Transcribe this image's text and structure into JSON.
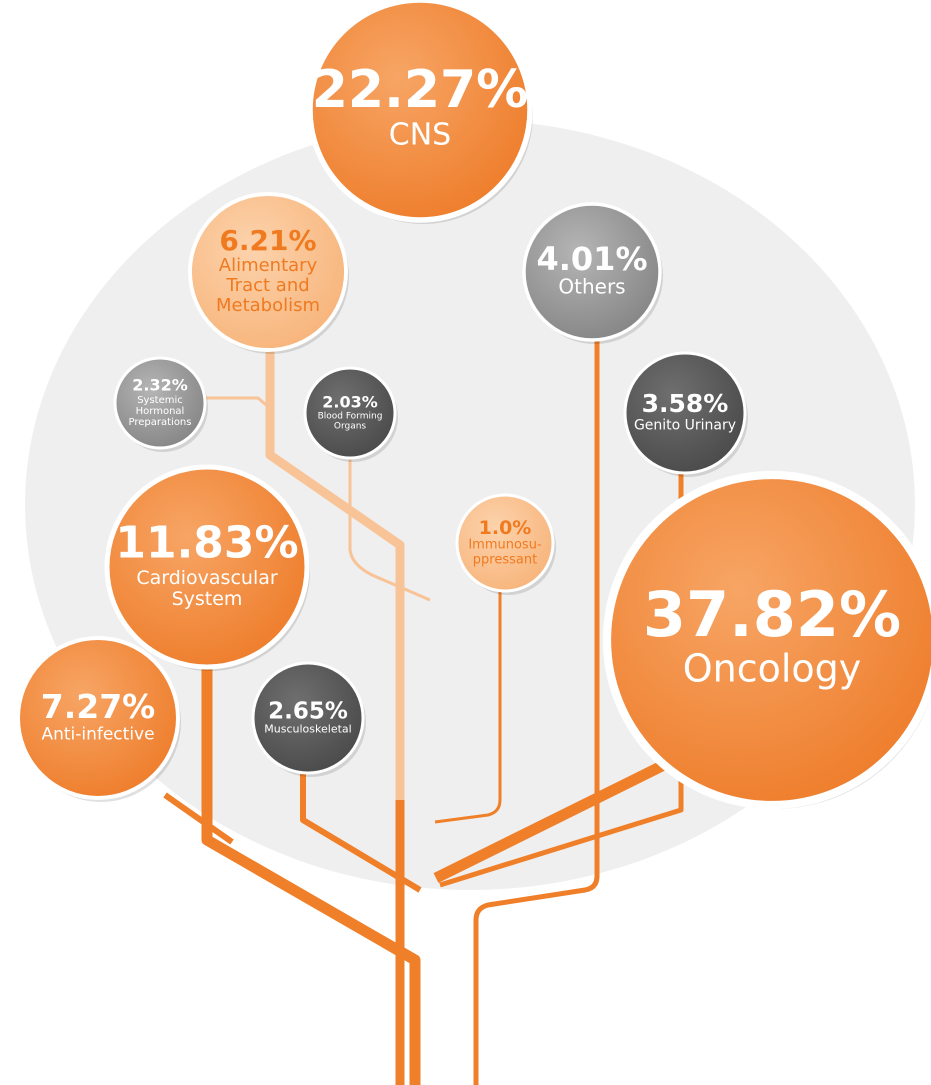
{
  "nodes": [
    {
      "percent": "22.27%",
      "label": [
        "CNS"
      ]
    },
    {
      "percent": "6.21%",
      "label": [
        "Alimentary",
        "Tract and",
        "Metabolism"
      ]
    },
    {
      "percent": "4.01%",
      "label": [
        "Others"
      ]
    },
    {
      "percent": "2.32%",
      "label": [
        "Systemic",
        "Hormonal",
        "Preparations"
      ]
    },
    {
      "percent": "2.03%",
      "label": [
        "Blood Forming",
        "Organs"
      ]
    },
    {
      "percent": "3.58%",
      "label": [
        "Genito Urinary"
      ]
    },
    {
      "percent": "11.83%",
      "label": [
        "Cardiovascular",
        "System"
      ]
    },
    {
      "percent": "1.0%",
      "label": [
        "Immunosu-",
        "ppressant"
      ]
    },
    {
      "percent": "37.82%",
      "label": [
        "Oncology"
      ]
    },
    {
      "percent": "7.27%",
      "label": [
        "Anti-infective"
      ]
    },
    {
      "percent": "2.65%",
      "label": [
        "Musculoskeletal"
      ]
    }
  ]
}
